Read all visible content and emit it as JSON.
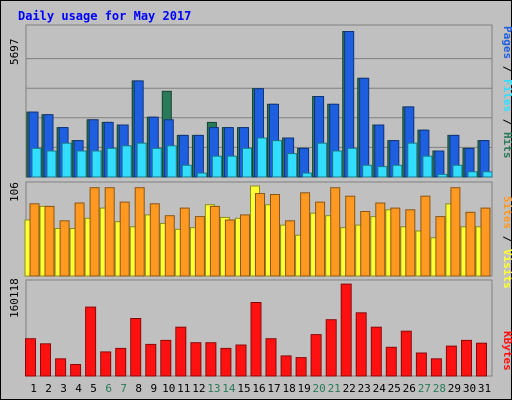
{
  "colors": {
    "frame": "#c0c0c0",
    "plot": "#c0c0c0",
    "grid": "#808080",
    "title": "#0000ff",
    "pages": "#1e5fe0",
    "files": "#33ddff",
    "hits": "#2a7a5a",
    "visits": "#ffff33",
    "sites": "#ff9922",
    "kbytes": "#ff1111",
    "weekend": "#2a7a5a",
    "weekday": "#000000"
  },
  "chart_data": {
    "type": "bar",
    "title": "Daily usage for May 2017",
    "categories": [
      "1",
      "2",
      "3",
      "4",
      "5",
      "6",
      "7",
      "8",
      "9",
      "10",
      "11",
      "12",
      "13",
      "14",
      "15",
      "16",
      "17",
      "18",
      "19",
      "20",
      "21",
      "22",
      "23",
      "24",
      "25",
      "26",
      "27",
      "28",
      "29",
      "30",
      "31"
    ],
    "weekend_days": [
      6,
      7,
      13,
      14,
      20,
      21,
      27,
      28
    ],
    "panels": [
      {
        "id": "top",
        "max_label": "5697",
        "ymax": 5697,
        "right_label": [
          {
            "text": "Pages",
            "color_key": "pages"
          },
          {
            "text": " / ",
            "color_key": "weekday"
          },
          {
            "text": "Files",
            "color_key": "files"
          },
          {
            "text": " / ",
            "color_key": "weekday"
          },
          {
            "text": "Hits",
            "color_key": "hits"
          }
        ],
        "series": [
          {
            "name": "Hits",
            "color_key": "hits",
            "values": [
              2500,
              2400,
              1900,
              1400,
              2200,
              2100,
              2000,
              3700,
              2300,
              3300,
              1600,
              1600,
              2100,
              1900,
              1900,
              3400,
              2800,
              1500,
              1100,
              3100,
              2800,
              5600,
              3800,
              2000,
              1400,
              2700,
              1800,
              1000,
              1600,
              1100,
              1400
            ]
          },
          {
            "name": "Pages",
            "color_key": "pages",
            "values": [
              2500,
              2400,
              1900,
              1400,
              2200,
              2100,
              2000,
              3700,
              2300,
              2200,
              1600,
              1600,
              1900,
              1900,
              1900,
              3400,
              2800,
              1500,
              1100,
              3100,
              2800,
              5600,
              3800,
              2000,
              1400,
              2700,
              1800,
              1000,
              1600,
              1100,
              1400
            ]
          },
          {
            "name": "Files",
            "color_key": "files",
            "values": [
              1100,
              1000,
              1300,
              1000,
              1000,
              1100,
              1200,
              1300,
              1100,
              1200,
              450,
              150,
              800,
              800,
              1100,
              1500,
              1400,
              900,
              150,
              1300,
              1000,
              1100,
              450,
              400,
              450,
              1300,
              800,
              100,
              450,
              200,
              200
            ]
          }
        ]
      },
      {
        "id": "middle",
        "max_label": "106",
        "ymax": 106,
        "right_label": [
          {
            "text": "Sites",
            "color_key": "sites"
          },
          {
            "text": " / ",
            "color_key": "weekday"
          },
          {
            "text": "Visits",
            "color_key": "visits"
          }
        ],
        "series": [
          {
            "name": "Visits",
            "color_key": "visits",
            "values": [
              66,
              82,
              56,
              56,
              68,
              80,
              64,
              58,
              72,
              62,
              55,
              57,
              84,
              69,
              68,
              106,
              84,
              60,
              48,
              74,
              71,
              57,
              60,
              70,
              78,
              58,
              53,
              45,
              85,
              58,
              58
            ]
          },
          {
            "name": "Sites",
            "color_key": "sites",
            "values": [
              85,
              82,
              65,
              86,
              104,
              104,
              87,
              104,
              85,
              71,
              80,
              70,
              82,
              66,
              72,
              97,
              96,
              65,
              98,
              87,
              104,
              94,
              76,
              86,
              80,
              78,
              94,
              70,
              104,
              75,
              80
            ]
          }
        ]
      },
      {
        "id": "bottom",
        "max_label": "160118",
        "ymax": 160118,
        "right_label": [
          {
            "text": "KBytes",
            "color_key": "kbytes"
          }
        ],
        "series": [
          {
            "name": "KBytes",
            "color_key": "kbytes",
            "values": [
              65000,
              56000,
              30000,
              20000,
              120000,
              42000,
              48000,
              100000,
              55000,
              62000,
              85000,
              58000,
              58000,
              48000,
              54000,
              128000,
              65000,
              35000,
              32000,
              72000,
              98000,
              160000,
              110000,
              85000,
              50000,
              78000,
              40000,
              30000,
              52000,
              62000,
              57000
            ]
          }
        ]
      }
    ]
  }
}
